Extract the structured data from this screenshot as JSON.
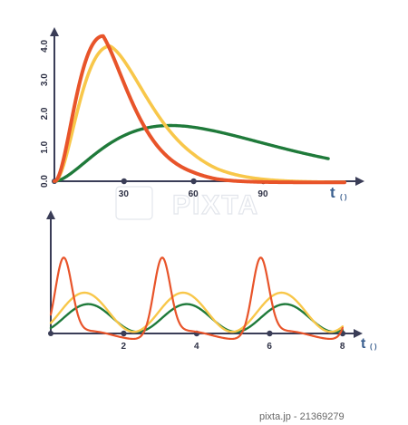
{
  "colors": {
    "axis": "#3a3d57",
    "red": "#e8542a",
    "yellow": "#f8c74a",
    "green": "#1f7a3a",
    "t_label": "#3a5f8f"
  },
  "chart_data": [
    {
      "type": "line",
      "x_axis": {
        "ticks": [
          30,
          60,
          90
        ],
        "label": "t",
        "unit_paren": "( )"
      },
      "y_axis": {
        "ticks": [
          "0.0",
          "1.0",
          "2.0",
          "3.0",
          "4.0"
        ]
      },
      "ylim": [
        0,
        4.4
      ],
      "xlim": [
        0,
        125
      ],
      "series": [
        {
          "color": "red",
          "peak_x": 21,
          "peak_y": 4.3,
          "shape": "sharp-peak-fast-decay"
        },
        {
          "color": "yellow",
          "peak_x": 24,
          "peak_y": 4.0,
          "shape": "peak-slower-decay"
        },
        {
          "color": "green",
          "peak_x": 50,
          "peak_y": 1.65,
          "shape": "broad-low-peak"
        }
      ]
    },
    {
      "type": "line",
      "x_axis": {
        "ticks": [
          "2",
          "4",
          "6",
          "8"
        ],
        "label": "t",
        "unit_paren": "( )"
      },
      "xlim": [
        0,
        8.5
      ],
      "series": [
        {
          "color": "red",
          "shape": "sharp periodic pulses"
        },
        {
          "color": "yellow",
          "shape": "periodic oscillation"
        },
        {
          "color": "green",
          "shape": "periodic oscillation, smaller amplitude"
        }
      ]
    }
  ],
  "watermark": "PIXTA",
  "footer": "pixta.jp - 21369279"
}
